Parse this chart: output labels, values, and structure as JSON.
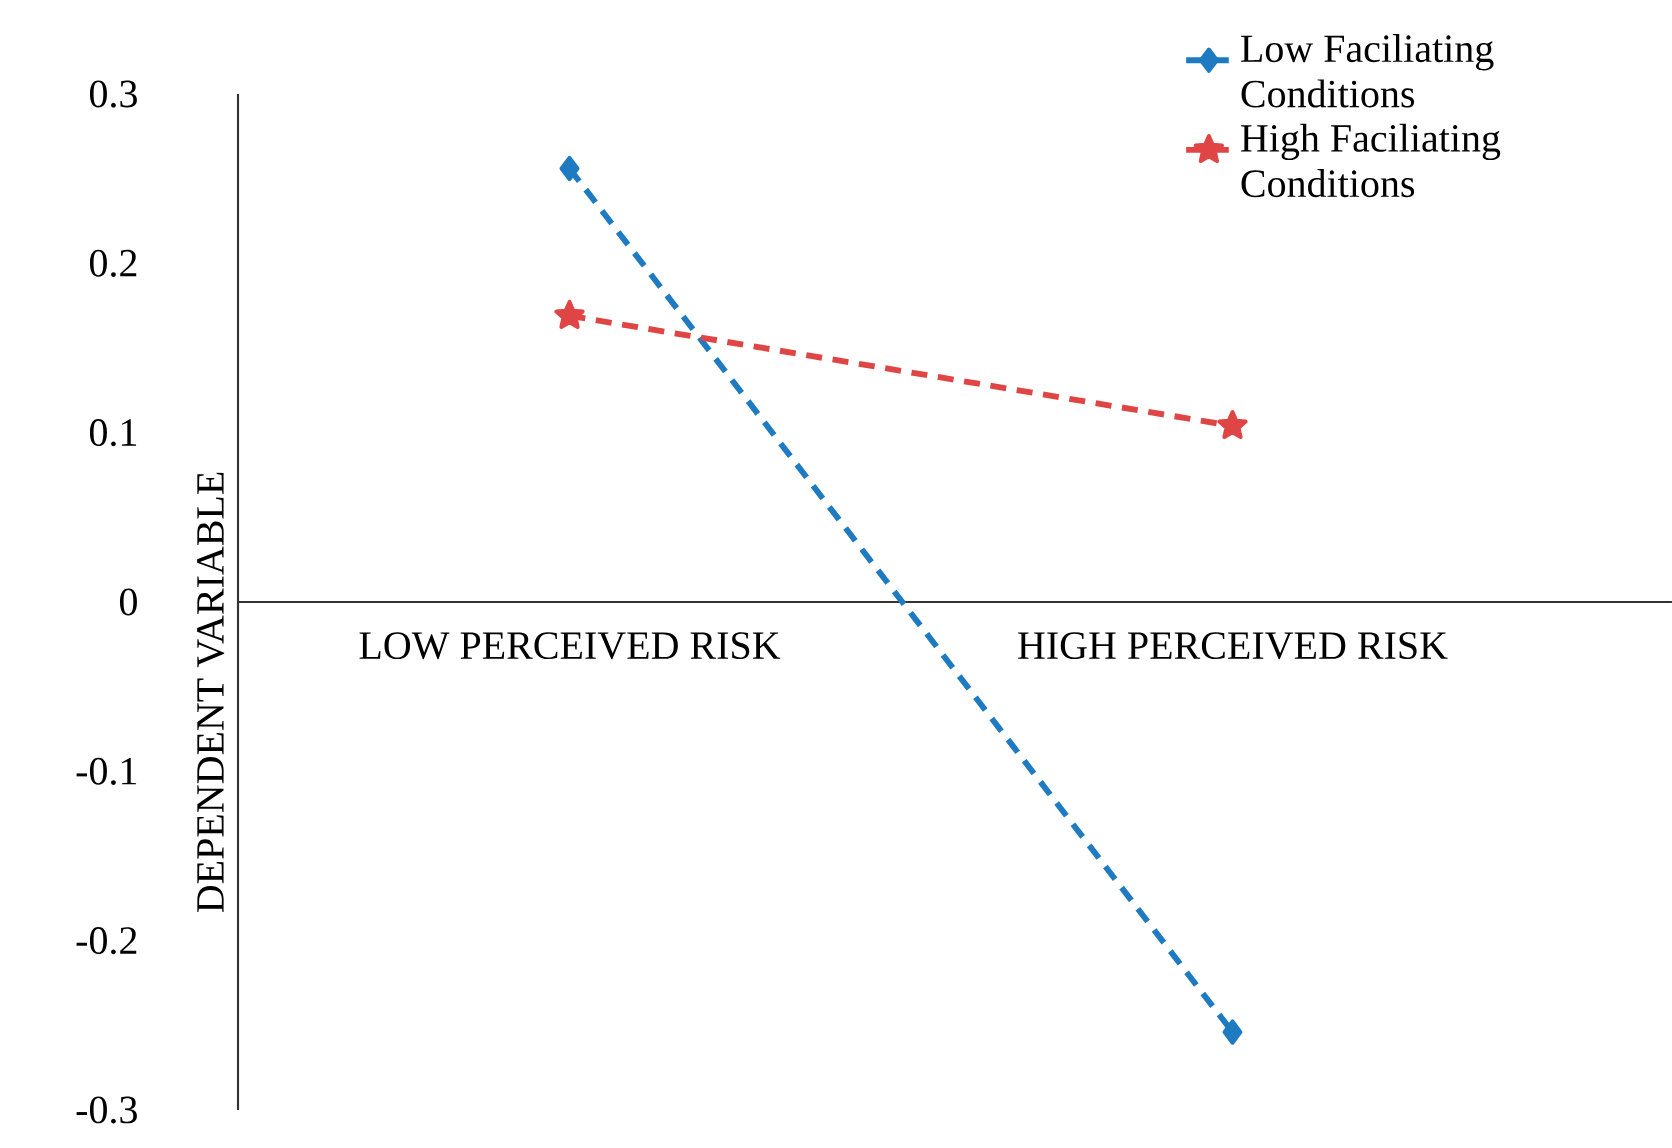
{
  "chart_data": {
    "type": "line",
    "ylabel": "DEPENDENT VARIABLE",
    "categories": [
      "LOW PERCEIVED RISK",
      "HIGH PERCEIVED RISK"
    ],
    "series": [
      {
        "name": "Low Faciliating Conditions",
        "color": "#1f7bc1",
        "values": [
          0.256,
          -0.254
        ],
        "marker": "diamond"
      },
      {
        "name": "High Faciliating Conditions",
        "color": "#e04545",
        "values": [
          0.169,
          0.104
        ],
        "marker": "star"
      }
    ],
    "ylim": [
      -0.3,
      0.3
    ],
    "yticks": [
      -0.3,
      -0.2,
      -0.1,
      0,
      0.1,
      0.2,
      0.3
    ],
    "line_style": "dashed",
    "legend": "top right",
    "grid": false
  }
}
